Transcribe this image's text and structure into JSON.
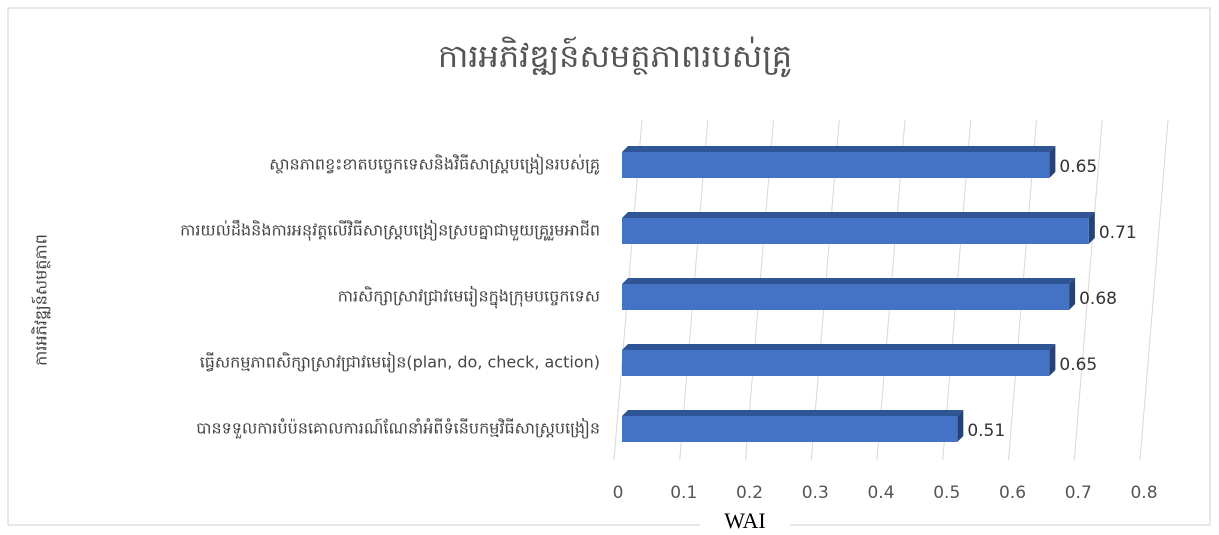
{
  "chart_data": {
    "type": "bar",
    "orientation": "horizontal",
    "title": "ការអភិវឌ្ឍន៍សមត្ថភាពរបស់គ្រូ",
    "y_label": "ការអភិវឌ្ឍន៍សមត្ថភាព",
    "x_label": "WAI",
    "categories": [
      "ស្ថានភាពខ្វះខាតបច្ចេកទេសនិងវិធីសាស្ត្របង្រៀនរបស់គ្រូ",
      "ការយល់ដឹងនិងការអនុវត្តលើវិធីសាស្ត្របង្រៀនស្របគ្នាជាមួយគ្រូរួមអាជីព",
      "ការសិក្សាស្រាវជ្រាវមេរៀនក្នុងក្រុមបច្ចេកទេស",
      "ធ្វើសកម្មភាពសិក្សាស្រាវជ្រាវមេរៀន(plan, do, check, action)",
      "បានទទួលការបំប៉នគោលការណ៍ណែនាំអំពីទំនើបកម្មវិធីសាស្ត្របង្រៀន"
    ],
    "values": [
      0.65,
      0.71,
      0.68,
      0.65,
      0.51
    ],
    "color": "#4472c4",
    "xlim": [
      0,
      0.8
    ],
    "xticks": [
      0,
      0.1,
      0.2,
      0.3,
      0.4,
      0.5,
      0.6,
      0.7,
      0.8
    ],
    "grid": true
  }
}
